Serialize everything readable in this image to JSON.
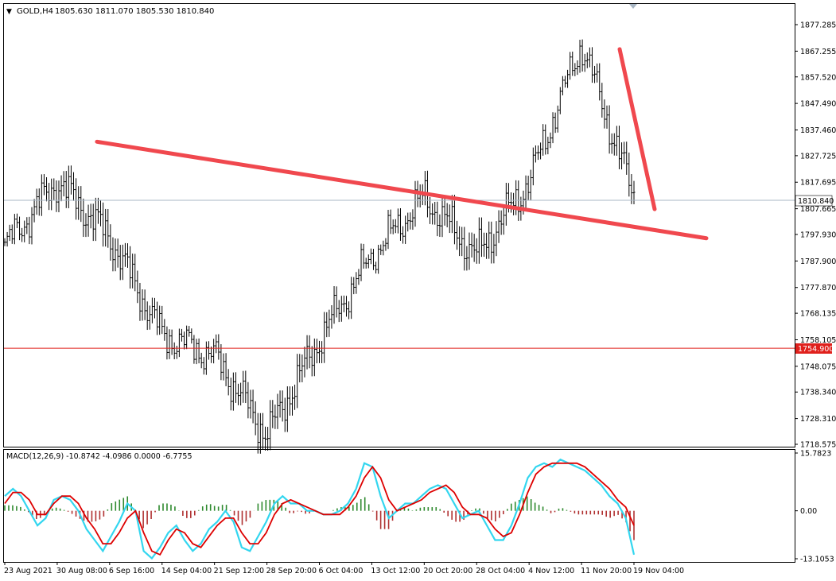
{
  "header": {
    "symbol": "GOLD,H4",
    "ohlc": "1805.630 1811.070 1805.530 1810.840",
    "menu_glyph": "▼"
  },
  "price_axis": {
    "ticks": [
      "1877.285",
      "1867.255",
      "1857.520",
      "1847.490",
      "1837.460",
      "1827.725",
      "1817.695",
      "1807.665",
      "1797.930",
      "1787.900",
      "1777.870",
      "1768.135",
      "1758.105",
      "1748.075",
      "1738.340",
      "1728.310",
      "1718.575"
    ],
    "bid_label": "1810.840",
    "level_label": "1754.900"
  },
  "macd": {
    "title": "MACD(12,26,9) -10.8742 -4.0986 0.0000 -6.7755",
    "ticks": [
      "15.7823",
      "0.00",
      "-13.1053"
    ]
  },
  "time_axis": {
    "labels": [
      "23 Aug 2021",
      "30 Aug 08:00",
      "6 Sep 16:00",
      "14 Sep 04:00",
      "21 Sep 12:00",
      "28 Sep 20:00",
      "6 Oct 04:00",
      "13 Oct 12:00",
      "20 Oct 20:00",
      "28 Oct 04:00",
      "4 Nov 12:00",
      "11 Nov 20:00",
      "19 Nov 04:00"
    ]
  },
  "colors": {
    "bars": "#000000",
    "trendline": "#f0484e",
    "level_line": "#e0201c",
    "bid_line": "#a9b7c6",
    "macd_signal": "#dd0000",
    "macd_main": "#33d6ef",
    "hist_pos": "#2f8a2f",
    "hist_neg": "#b03030"
  },
  "chart_data": [
    {
      "type": "line",
      "title": "",
      "series": [
        {
          "name": "",
          "x": [
            "23 Aug 2021",
            "30 Aug 08:00",
            "6 Sep 16:00",
            "14 Sep 04:00",
            "21 Sep 12:00",
            "28 Sep 20:00",
            "6 Oct 04:00",
            "13 Oct 12:00",
            "20 Oct 20:00",
            "28 Oct 04:00",
            "4 Nov 12:00",
            "11 Nov 20:00",
            "19 Nov 04:00"
          ],
          "values": [
            1793,
            1818,
            1797,
            1760,
            1752,
            1722,
            1758,
            1790,
            1812,
            1790,
            1818,
            1870,
            1812
          ]
        }
      ],
      "ylim": [
        1718.575,
        1877.285
      ],
      "horizontal_levels": [
        1810.84,
        1754.9
      ],
      "trendlines": [
        {
          "from": [
            "30 Aug 08:00",
            1833.0
          ],
          "to": [
            "19 Nov 04:00",
            1796.5
          ]
        },
        {
          "from": [
            "11 Nov 20:00",
            1868.0
          ],
          "to": [
            "19 Nov 04:00",
            1807.5
          ]
        }
      ],
      "grid": false
    },
    {
      "type": "line",
      "title": "MACD(12,26,9) -10.8742 -4.0986 0.0000 -6.7755",
      "series": [
        {
          "name": "",
          "values": [
            4,
            6,
            4,
            0,
            -4,
            -2,
            3,
            4,
            3,
            0,
            -5,
            -8,
            -11,
            -7,
            -3,
            2,
            0,
            -11,
            -13,
            -10,
            -6,
            -4,
            -8,
            -11,
            -9,
            -5,
            -3,
            0,
            -3,
            -10,
            -11,
            -7,
            -3,
            2,
            4,
            2,
            2,
            0,
            0,
            -1,
            -1,
            0,
            2,
            6,
            13,
            12,
            4,
            -2,
            0,
            2,
            2,
            4,
            6,
            7,
            6,
            2,
            -2,
            -1,
            0,
            -4,
            -8,
            -8,
            -4,
            2,
            9,
            12,
            13,
            12,
            14,
            13,
            12,
            11,
            9,
            7,
            4,
            2,
            -2,
            -12
          ]
        },
        {
          "name": "",
          "values": [
            2,
            5,
            5,
            3,
            -1,
            -1,
            2,
            4,
            4,
            2,
            -2,
            -5,
            -9,
            -9,
            -6,
            -2,
            0,
            -6,
            -11,
            -12,
            -8,
            -5,
            -6,
            -9,
            -10,
            -7,
            -4,
            -2,
            -2,
            -6,
            -9,
            -9,
            -6,
            -1,
            2,
            3,
            2,
            1,
            0,
            -1,
            -1,
            -1,
            1,
            4,
            9,
            12,
            9,
            3,
            0,
            1,
            2,
            3,
            5,
            6,
            7,
            5,
            1,
            -1,
            -1,
            -2,
            -5,
            -7,
            -6,
            -1,
            5,
            10,
            12,
            13,
            13,
            13,
            13,
            12,
            10,
            8,
            6,
            3,
            1,
            -4
          ]
        },
        {
          "name": "",
          "values": [
            1.5,
            1.5,
            1,
            -0.5,
            -2.5,
            -1,
            1,
            0.5,
            -0.5,
            -2,
            -3,
            -3,
            -2,
            2,
            3,
            4,
            0,
            -5,
            -2,
            2,
            2,
            1,
            -2,
            -2,
            1,
            2,
            1,
            2,
            -1,
            -4,
            -2,
            2,
            3,
            3,
            2,
            -1,
            0,
            -1,
            0,
            0,
            0,
            1,
            1,
            2,
            4,
            0,
            -5,
            -5,
            0,
            1,
            0,
            1,
            1,
            1,
            -1,
            -3,
            -3,
            0,
            1,
            -2,
            -3,
            -1,
            2,
            3,
            4,
            2,
            1,
            -1,
            1,
            0,
            -1,
            -1,
            -1,
            -1,
            -2,
            -1,
            -3,
            -8
          ]
        }
      ],
      "ylim": [
        -13.1053,
        15.7823
      ]
    }
  ]
}
